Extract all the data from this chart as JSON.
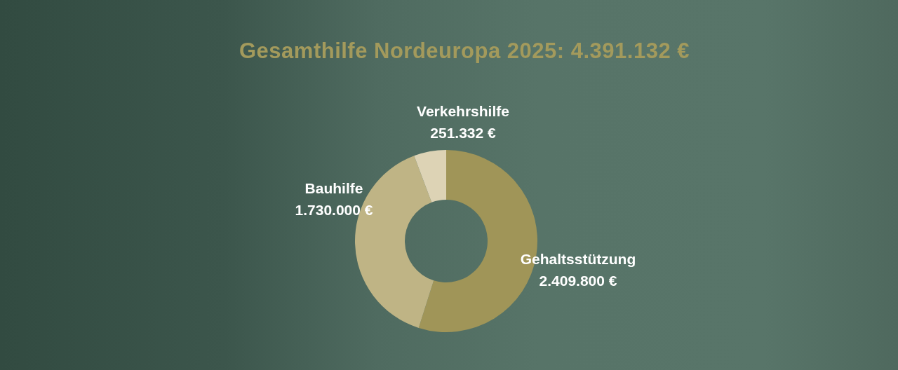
{
  "chart_data": {
    "type": "donut",
    "title": "Gesamthilfe Nordeuropa 2025: 4.391.132 €",
    "categories": [
      "Gehaltsstützung",
      "Bauhilfe",
      "Verkehrshilfe"
    ],
    "values": [
      2409800,
      1730000,
      251332
    ],
    "colors": [
      "#a09558",
      "#bfb485",
      "#ddd3b5"
    ],
    "value_labels": [
      "2.409.800 €",
      "1.730.000 €",
      "251.332 €"
    ]
  }
}
